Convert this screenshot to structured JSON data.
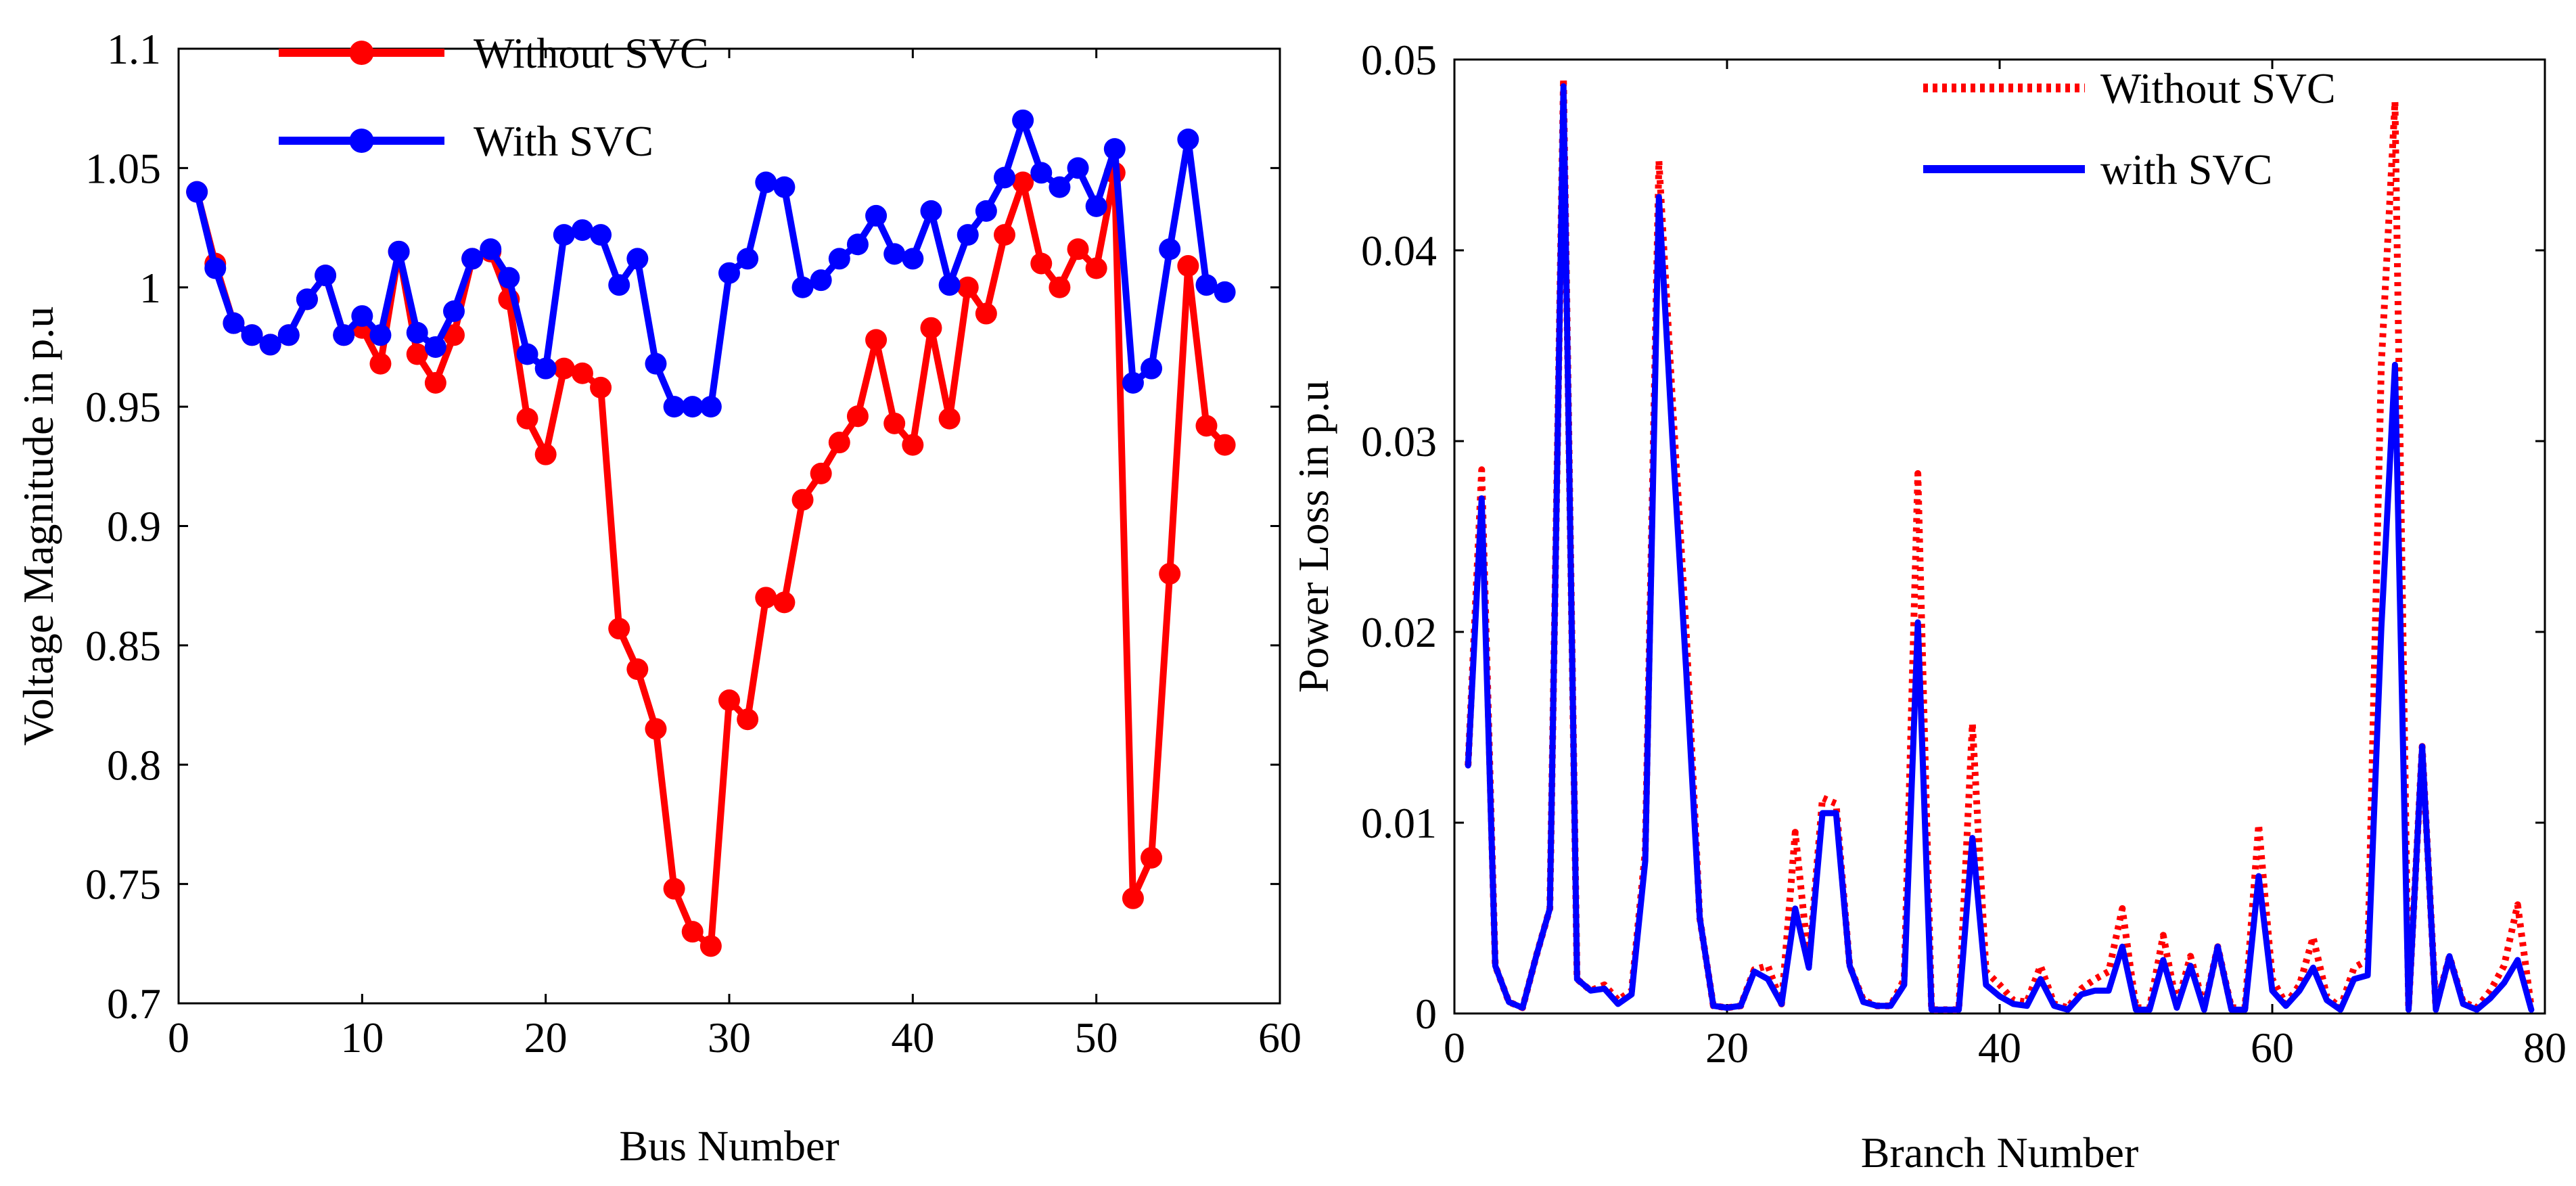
{
  "chart_data": [
    {
      "type": "line",
      "title": "",
      "xlabel": "Bus Number",
      "ylabel": "Voltage Magnitude in p.u",
      "xlim": [
        0,
        60
      ],
      "ylim": [
        0.7,
        1.1
      ],
      "xticks": [
        0,
        10,
        20,
        30,
        40,
        50,
        60
      ],
      "yticks": [
        0.7,
        0.75,
        0.8,
        0.85,
        0.9,
        0.95,
        1,
        1.05,
        1.1
      ],
      "xtick_labels": [
        "0",
        "10",
        "20",
        "30",
        "40",
        "50",
        "60"
      ],
      "ytick_labels": [
        "0.7",
        "0.75",
        "0.8",
        "0.85",
        "0.9",
        "0.95",
        "1",
        "1.05",
        "1.1"
      ],
      "grid": false,
      "legend_position": "top-left",
      "x": [
        1,
        2,
        3,
        4,
        5,
        6,
        7,
        8,
        9,
        10,
        11,
        12,
        13,
        14,
        15,
        16,
        17,
        18,
        19,
        20,
        21,
        22,
        23,
        24,
        25,
        26,
        27,
        28,
        29,
        30,
        31,
        32,
        33,
        34,
        35,
        36,
        37,
        38,
        39,
        40,
        41,
        42,
        43,
        44,
        45,
        46,
        47,
        48,
        49,
        50,
        51,
        52,
        53,
        54,
        55,
        56,
        57
      ],
      "series": [
        {
          "name": "Without SVC",
          "color": "#ff0000",
          "marker": "circle",
          "values": [
            1.04,
            1.01,
            0.985,
            0.98,
            0.976,
            0.98,
            0.995,
            1.005,
            0.98,
            0.983,
            0.968,
            1.015,
            0.972,
            0.96,
            0.98,
            1.012,
            1.015,
            0.995,
            0.945,
            0.93,
            0.966,
            0.964,
            0.958,
            0.857,
            0.84,
            0.815,
            0.748,
            0.73,
            0.724,
            0.827,
            0.819,
            0.87,
            0.868,
            0.911,
            0.922,
            0.935,
            0.946,
            0.978,
            0.943,
            0.934,
            0.983,
            0.945,
            1.0,
            0.989,
            1.022,
            1.044,
            1.01,
            1.0,
            1.016,
            1.008,
            1.048,
            0.744,
            0.761,
            0.88,
            1.009,
            0.942,
            0.934
          ]
        },
        {
          "name": "With SVC",
          "color": "#0000ff",
          "marker": "circle",
          "values": [
            1.04,
            1.008,
            0.985,
            0.98,
            0.976,
            0.98,
            0.995,
            1.005,
            0.98,
            0.988,
            0.98,
            1.015,
            0.981,
            0.975,
            0.99,
            1.012,
            1.016,
            1.004,
            0.972,
            0.966,
            1.022,
            1.024,
            1.022,
            1.001,
            1.012,
            0.968,
            0.95,
            0.95,
            0.95,
            1.006,
            1.012,
            1.044,
            1.042,
            1.0,
            1.003,
            1.012,
            1.018,
            1.03,
            1.014,
            1.012,
            1.032,
            1.001,
            1.022,
            1.032,
            1.046,
            1.07,
            1.048,
            1.042,
            1.05,
            1.034,
            1.058,
            0.96,
            0.966,
            1.016,
            1.062,
            1.001,
            0.998
          ]
        }
      ]
    },
    {
      "type": "line",
      "title": "",
      "xlabel": "Branch Number",
      "ylabel": "Power Loss in p.u",
      "xlim": [
        0,
        80
      ],
      "ylim": [
        0,
        0.05
      ],
      "xticks": [
        0,
        20,
        40,
        60,
        80
      ],
      "yticks": [
        0,
        0.01,
        0.02,
        0.03,
        0.04,
        0.05
      ],
      "xtick_labels": [
        "0",
        "20",
        "40",
        "60",
        "80"
      ],
      "ytick_labels": [
        "0",
        "0.01",
        "0.02",
        "0.03",
        "0.04",
        "0.05"
      ],
      "grid": false,
      "legend_position": "top-right",
      "x": [
        1,
        2,
        3,
        4,
        5,
        6,
        7,
        8,
        9,
        10,
        11,
        12,
        13,
        14,
        15,
        16,
        17,
        18,
        19,
        20,
        21,
        22,
        23,
        24,
        25,
        26,
        27,
        28,
        29,
        30,
        31,
        32,
        33,
        34,
        35,
        36,
        37,
        38,
        39,
        40,
        41,
        42,
        43,
        44,
        45,
        46,
        47,
        48,
        49,
        50,
        51,
        52,
        53,
        54,
        55,
        56,
        57,
        58,
        59,
        60,
        61,
        62,
        63,
        64,
        65,
        66,
        67,
        68,
        69,
        70,
        71,
        72,
        73,
        74,
        75,
        76,
        77,
        78,
        79
      ],
      "series": [
        {
          "name": "Without SVC",
          "color": "#ff0000",
          "style": "dotted",
          "values": [
            0.013,
            0.0285,
            0.0025,
            0.0006,
            0.0003,
            0.003,
            0.0055,
            0.049,
            0.0018,
            0.0012,
            0.0015,
            0.0007,
            0.0012,
            0.0085,
            0.0447,
            0.032,
            0.02,
            0.005,
            0.0004,
            0.0003,
            0.0004,
            0.0023,
            0.0025,
            0.0005,
            0.0095,
            0.0026,
            0.0113,
            0.011,
            0.0025,
            0.0007,
            0.0004,
            0.0004,
            0.0018,
            0.0283,
            0.0002,
            0.0002,
            0.0002,
            0.0152,
            0.0022,
            0.0015,
            0.0007,
            0.0006,
            0.0025,
            0.0005,
            0.0003,
            0.0013,
            0.0018,
            0.0022,
            0.0055,
            0.0003,
            0.0003,
            0.0041,
            0.0004,
            0.003,
            0.0003,
            0.0035,
            0.0003,
            0.0003,
            0.0099,
            0.0018,
            0.0005,
            0.0015,
            0.004,
            0.0009,
            0.0003,
            0.0024,
            0.0028,
            0.034,
            0.0478,
            0.0003,
            0.014,
            0.0003,
            0.003,
            0.0006,
            0.0003,
            0.0012,
            0.0025,
            0.0057,
            0.0003
          ]
        },
        {
          "name": "with SVC",
          "color": "#0000ff",
          "style": "solid",
          "values": [
            0.013,
            0.027,
            0.0025,
            0.0006,
            0.0003,
            0.003,
            0.0055,
            0.0486,
            0.0018,
            0.0012,
            0.0013,
            0.0005,
            0.001,
            0.008,
            0.0428,
            0.03,
            0.018,
            0.005,
            0.0004,
            0.0003,
            0.0004,
            0.0022,
            0.0018,
            0.0005,
            0.0055,
            0.0024,
            0.0105,
            0.0105,
            0.0025,
            0.0006,
            0.0004,
            0.0004,
            0.0015,
            0.0205,
            0.0002,
            0.0002,
            0.0002,
            0.0092,
            0.0015,
            0.0009,
            0.0005,
            0.0004,
            0.0018,
            0.0004,
            0.0002,
            0.001,
            0.0012,
            0.0012,
            0.0035,
            0.0002,
            0.0002,
            0.0028,
            0.0003,
            0.0025,
            0.0002,
            0.0035,
            0.0002,
            0.0002,
            0.0072,
            0.0012,
            0.0004,
            0.0012,
            0.0024,
            0.0007,
            0.0002,
            0.0018,
            0.002,
            0.0202,
            0.034,
            0.0002,
            0.014,
            0.0002,
            0.003,
            0.0005,
            0.0002,
            0.0008,
            0.0016,
            0.0028,
            0.0002
          ]
        }
      ]
    }
  ]
}
